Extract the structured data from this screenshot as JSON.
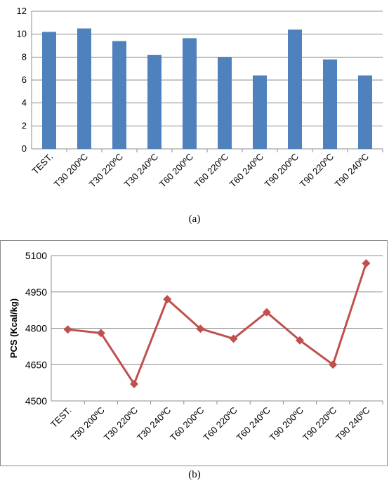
{
  "captions": {
    "a": "(a)",
    "b": "(b)"
  },
  "chart_data": [
    {
      "type": "bar",
      "categories": [
        "TEST.",
        "T30 200ºC",
        "T30 220ºC",
        "T30 240ºC",
        "T60 200ºC",
        "T60 220ºC",
        "T60 240ºC",
        "T90 200ºC",
        "T90 220ºC",
        "T90 240ºC"
      ],
      "values": [
        10.2,
        10.5,
        9.4,
        8.2,
        9.65,
        8.0,
        6.4,
        10.4,
        7.8,
        6.4
      ],
      "ylim": [
        0,
        12
      ],
      "yticks": [
        0,
        2,
        4,
        6,
        8,
        10,
        12
      ],
      "title": "",
      "xlabel": "",
      "ylabel": "",
      "grid": true,
      "color": "#4f81bd"
    },
    {
      "type": "line",
      "categories": [
        "TEST.",
        "T30 200ºC",
        "T30 220ºC",
        "T30 240ºC",
        "T60 200ºC",
        "T60 220ºC",
        "T60 240ºC",
        "T90 200ºC",
        "T90 220ºC",
        "T90 240ºC"
      ],
      "values": [
        4795,
        4780,
        4570,
        4920,
        4798,
        4757,
        4866,
        4750,
        4650,
        5068
      ],
      "ylim": [
        4500,
        5100
      ],
      "yticks": [
        4500,
        4650,
        4800,
        4950,
        5100
      ],
      "title": "",
      "xlabel": "",
      "ylabel": "PCS (Kcal/kg)",
      "grid": true,
      "marker": "diamond",
      "color": "#c0504d"
    }
  ]
}
